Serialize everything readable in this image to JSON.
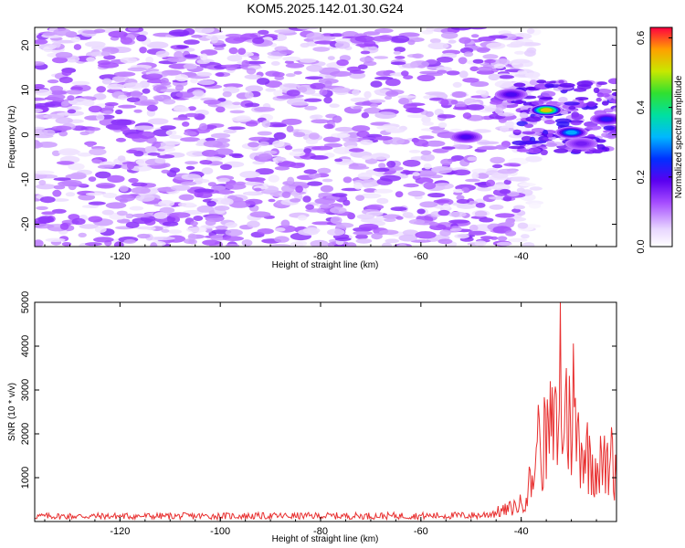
{
  "title": "KOM5.2025.142.01.30.G24",
  "colors": {
    "line": "#e83030",
    "frame": "#000000"
  },
  "chart_data": [
    {
      "type": "heatmap",
      "xlabel": "Height of straight line (km)",
      "ylabel": "Frequency (Hz)",
      "xlim": [
        -137,
        -21
      ],
      "ylim": [
        -25,
        24
      ],
      "xticks": [
        -120,
        -100,
        -80,
        -60,
        -40
      ],
      "yticks": [
        20,
        10,
        0,
        -10,
        -20
      ],
      "colorbar": {
        "label": "Normalized spectral amplitude",
        "range": [
          0.0,
          0.63
        ],
        "ticks": [
          0.0,
          0.2,
          0.4,
          0.6
        ]
      },
      "hotspots": [
        {
          "x": -35,
          "y": 5.5,
          "amp": 0.62
        },
        {
          "x": -30,
          "y": 0.5,
          "amp": 0.35
        },
        {
          "x": -23,
          "y": 3.5,
          "amp": 0.25
        },
        {
          "x": -51,
          "y": -0.5,
          "amp": 0.22
        },
        {
          "x": -42,
          "y": 9,
          "amp": 0.22
        },
        {
          "x": -28,
          "y": -2,
          "amp": 0.18
        }
      ],
      "background_amp": 0.1
    },
    {
      "type": "line",
      "xlabel": "Height of straight line (km)",
      "ylabel": "SNR (10 * v/v)",
      "xlim": [
        -137,
        -21
      ],
      "ylim": [
        0,
        5000
      ],
      "xticks": [
        -120,
        -100,
        -80,
        -60,
        -40
      ],
      "yticks": [
        1000,
        2000,
        3000,
        4000,
        5000
      ],
      "x_step": 0.2,
      "profile": [
        {
          "x": -137,
          "y": 130
        },
        {
          "x": -60,
          "y": 140
        },
        {
          "x": -48,
          "y": 150
        },
        {
          "x": -43,
          "y": 280
        },
        {
          "x": -40,
          "y": 430
        },
        {
          "x": -38,
          "y": 1000
        },
        {
          "x": -36,
          "y": 1800
        },
        {
          "x": -33,
          "y": 2300
        },
        {
          "x": -31,
          "y": 2500
        },
        {
          "x": -29,
          "y": 2200
        },
        {
          "x": -27,
          "y": 1700
        },
        {
          "x": -25,
          "y": 1400
        },
        {
          "x": -21,
          "y": 1300
        }
      ],
      "peaks": [
        {
          "x": -32.1,
          "y": 5000
        },
        {
          "x": -29.5,
          "y": 4060
        },
        {
          "x": -31.0,
          "y": 3500
        },
        {
          "x": -36.5,
          "y": 2660
        },
        {
          "x": -34.2,
          "y": 3200
        },
        {
          "x": -33.0,
          "y": 2900
        },
        {
          "x": -30.2,
          "y": 2400
        },
        {
          "x": -22.0,
          "y": 2150
        }
      ]
    }
  ]
}
